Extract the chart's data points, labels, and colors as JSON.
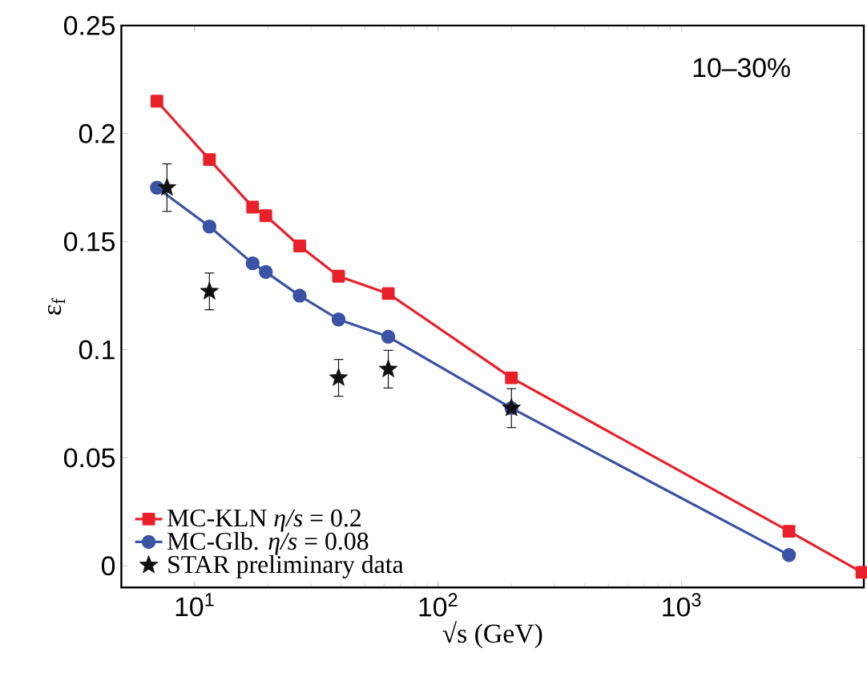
{
  "chart_data": {
    "type": "line",
    "xlabel": "√s (GeV)",
    "ylabel": "ε$_{f}$",
    "annotations": [
      "10–30%"
    ],
    "log": "x",
    "xlim": [
      5,
      5600
    ],
    "ylim": [
      -0.01,
      0.25
    ],
    "xticks": [
      {
        "value": 10,
        "label": "10$^{1}$"
      },
      {
        "value": 100,
        "label": "10$^{2}$"
      },
      {
        "value": 1000,
        "label": "10$^{3}$"
      }
    ],
    "yticks": [
      0,
      0.05,
      0.1,
      0.15,
      0.2,
      0.25
    ],
    "grid": false,
    "legend": "bottom left",
    "series": [
      {
        "name": "MC-KLN *η/s* = 0.2",
        "marker": "square",
        "color": "#e8202a",
        "x": [
          7,
          11.5,
          17.3,
          19.6,
          27,
          39,
          62.4,
          200,
          2760,
          5500
        ],
        "values": [
          0.215,
          0.188,
          0.166,
          0.162,
          0.148,
          0.134,
          0.126,
          0.087,
          0.016,
          -0.003
        ]
      },
      {
        "name": "MC-Glb. *η/s* = 0.08",
        "marker": "circle",
        "color": "#3a53a4",
        "x": [
          7,
          11.5,
          17.3,
          19.6,
          27,
          39,
          62.4,
          200,
          2760
        ],
        "values": [
          0.175,
          0.157,
          0.14,
          0.136,
          0.125,
          0.114,
          0.106,
          0.073,
          0.005
        ]
      },
      {
        "name": "STAR preliminary data",
        "type": "scatter",
        "marker": "star",
        "color": "#111111",
        "x": [
          7.7,
          11.5,
          39,
          62.4,
          200
        ],
        "values": [
          0.175,
          0.127,
          0.087,
          0.091,
          0.073
        ],
        "errors": [
          0.011,
          0.0085,
          0.0085,
          0.0087,
          0.009
        ]
      }
    ]
  }
}
